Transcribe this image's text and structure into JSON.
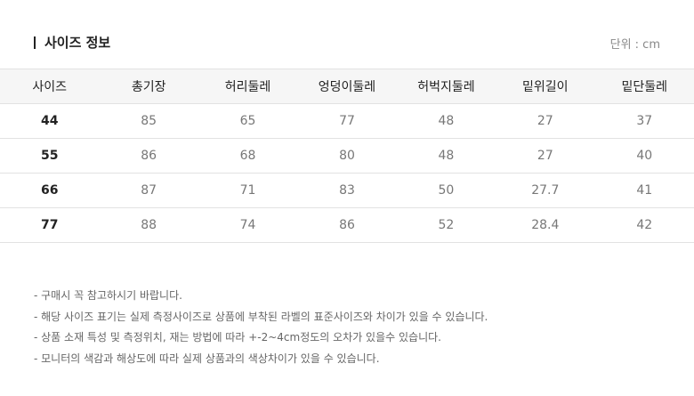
{
  "title": "사이즈 정보",
  "unit": "단위 : cm",
  "columns": [
    "사이즈",
    "총기장",
    "허리둘레",
    "엉덩이둘레",
    "허벅지둘레",
    "밑위길이",
    "밑단둘레"
  ],
  "rows": [
    [
      "44",
      "85",
      "65",
      "77",
      "48",
      "27",
      "37"
    ],
    [
      "55",
      "86",
      "68",
      "80",
      "48",
      "27",
      "40"
    ],
    [
      "66",
      "87",
      "71",
      "83",
      "50",
      "27.7",
      "41"
    ],
    [
      "77",
      "88",
      "74",
      "86",
      "52",
      "28.4",
      "42"
    ]
  ],
  "notes": [
    "- 구매시 꼭 참고하시기 바랍니다.",
    "- 해당 사이즈 표기는 실제 측정사이즈로 상품에 부착된 라벨의 표준사이즈와 차이가 있을 수 있습니다.",
    "- 상품 소재 특성 및 측정위치, 재는 방법에 따라 +-2~4cm정도의 오차가 있을수 있습니다.",
    "- 모니터의 색감과 해상도에 따라 실제 상품과의 색상차이가 있을 수 있습니다."
  ]
}
